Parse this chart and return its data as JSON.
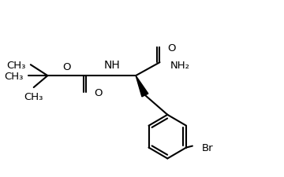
{
  "background_color": "#ffffff",
  "line_color": "#000000",
  "line_width": 1.5,
  "font_size": 9.5,
  "figsize": [
    3.6,
    2.26
  ],
  "dpi": 100,
  "xlim": [
    0,
    360
  ],
  "ylim": [
    0,
    226
  ]
}
